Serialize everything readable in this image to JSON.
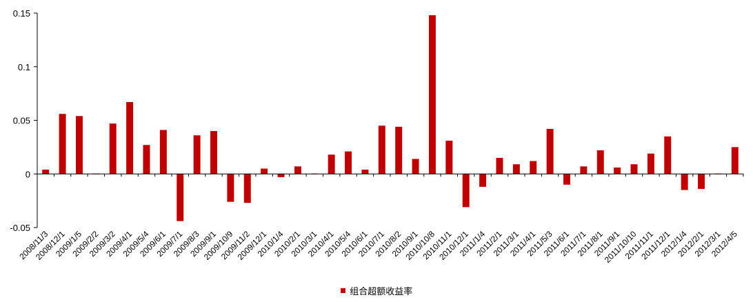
{
  "chart_data": {
    "type": "bar",
    "categories": [
      "2008/11/3",
      "2008/12/1",
      "2009/1/5",
      "2009/2/2",
      "2009/3/2",
      "2009/4/1",
      "2009/5/4",
      "2009/6/1",
      "2009/7/1",
      "2009/8/3",
      "2009/9/1",
      "2009/10/9",
      "2009/11/2",
      "2009/12/1",
      "2010/1/4",
      "2010/2/1",
      "2010/3/1",
      "2010/4/1",
      "2010/5/4",
      "2010/6/1",
      "2010/7/1",
      "2010/8/2",
      "2010/9/1",
      "2010/10/8",
      "2010/11/1",
      "2010/12/1",
      "2011/1/4",
      "2011/2/1",
      "2011/3/1",
      "2011/4/1",
      "2011/5/3",
      "2011/6/1",
      "2011/7/1",
      "2011/8/1",
      "2011/9/1",
      "2011/10/10",
      "2011/11/1",
      "2011/12/1",
      "2012/1/4",
      "2012/2/1",
      "2012/3/1",
      "2012/4/5"
    ],
    "series": [
      {
        "name": "组合超额收益率",
        "color": "#c00000",
        "values": [
          0.004,
          0.056,
          0.054,
          0.0,
          0.047,
          0.067,
          0.027,
          0.041,
          -0.044,
          0.036,
          0.04,
          -0.026,
          -0.027,
          0.005,
          -0.003,
          0.007,
          0.0,
          0.018,
          0.021,
          0.004,
          0.045,
          0.044,
          0.014,
          0.148,
          0.031,
          -0.031,
          -0.012,
          0.015,
          0.009,
          0.012,
          0.042,
          -0.01,
          0.007,
          0.022,
          0.006,
          0.009,
          0.019,
          0.035,
          -0.015,
          -0.014,
          0.0,
          0.025
        ]
      }
    ],
    "yticks": [
      "0.15",
      "0.1",
      "0.05",
      "0",
      "-0.05"
    ],
    "ylim": [
      -0.05,
      0.15
    ],
    "grid": false,
    "legend_position": "bottom"
  }
}
